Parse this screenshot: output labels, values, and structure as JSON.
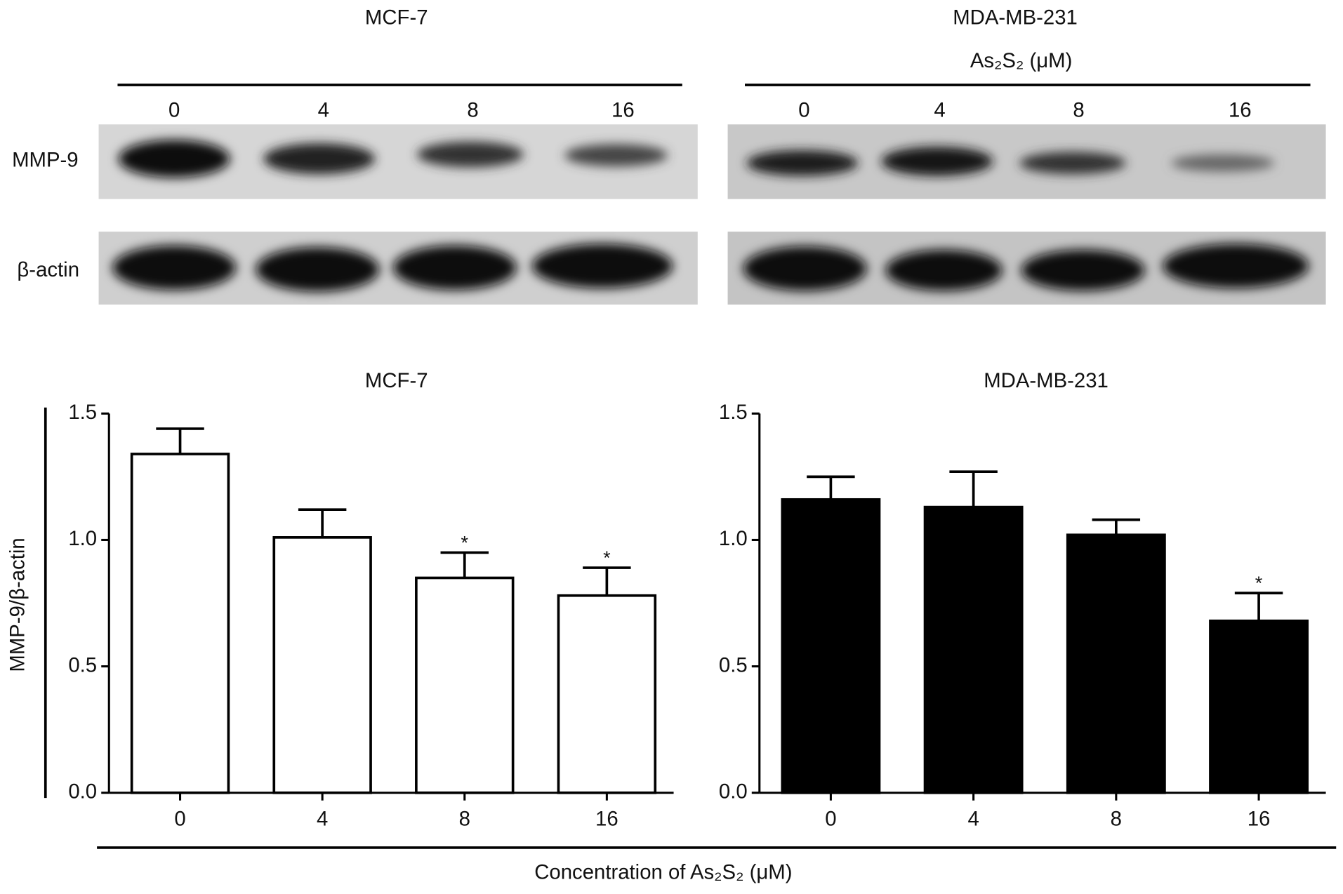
{
  "blot": {
    "panels": [
      {
        "title": "MCF-7",
        "lanes": [
          "0",
          "4",
          "8",
          "16"
        ]
      },
      {
        "title": "MDA-MB-231",
        "treatment": "As₂S₂ (μM)",
        "lanes": [
          "0",
          "4",
          "8",
          "16"
        ]
      }
    ],
    "rows": [
      "MMP-9",
      "β-actin"
    ]
  },
  "xlabel": "Concentration of As₂S₂ (μM)",
  "chart_data": [
    {
      "type": "bar",
      "title": "MCF-7",
      "ylabel": "MMP-9/β-actin",
      "categories": [
        "0",
        "4",
        "8",
        "16"
      ],
      "values": [
        1.34,
        1.01,
        0.85,
        0.78
      ],
      "errors": [
        0.1,
        0.11,
        0.1,
        0.11
      ],
      "significance": [
        null,
        null,
        "*",
        "*"
      ],
      "color": "#ffffff",
      "ylim": [
        0,
        1.5
      ],
      "yticks": [
        {
          "value": 0,
          "label": "0.0"
        },
        {
          "value": 0.5,
          "label": "0.5"
        },
        {
          "value": 1,
          "label": "1.0"
        },
        {
          "value": 1.5,
          "label": "1.5"
        }
      ]
    },
    {
      "type": "bar",
      "title": "MDA-MB-231",
      "categories": [
        "0",
        "4",
        "8",
        "16"
      ],
      "values": [
        1.16,
        1.13,
        1.02,
        0.68
      ],
      "errors": [
        0.09,
        0.14,
        0.06,
        0.11
      ],
      "significance": [
        null,
        null,
        null,
        "*"
      ],
      "color": "#000000",
      "ylim": [
        0,
        1.5
      ],
      "yticks": [
        {
          "value": 0,
          "label": "0.0"
        },
        {
          "value": 0.5,
          "label": "0.5"
        },
        {
          "value": 1,
          "label": "1.0"
        },
        {
          "value": 1.5,
          "label": "1.5"
        }
      ]
    }
  ]
}
